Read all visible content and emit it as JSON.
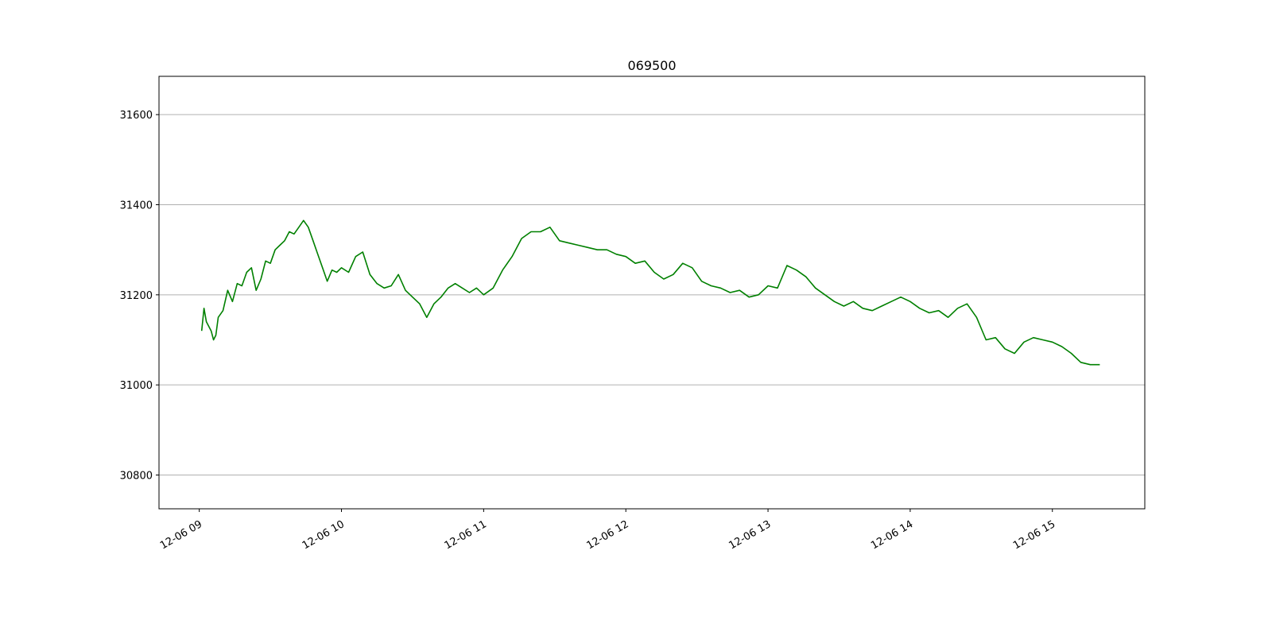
{
  "chart_data": {
    "type": "line",
    "title": "069500",
    "xlabel": "",
    "ylabel": "",
    "ylim": [
      30725,
      31685
    ],
    "xlim": [
      "12-06 08:43",
      "12-06 15:39"
    ],
    "grid": "horizontal",
    "legend": "none",
    "line_color": "#008000",
    "x_ticks": [
      "12-06 09",
      "12-06 10",
      "12-06 11",
      "12-06 12",
      "12-06 13",
      "12-06 14",
      "12-06 15"
    ],
    "y_ticks": [
      30800,
      31000,
      31200,
      31400,
      31600
    ],
    "series": [
      {
        "x": [
          "12-06 09:01",
          "12-06 09:02",
          "12-06 09:03",
          "12-06 09:04",
          "12-06 09:05",
          "12-06 09:06",
          "12-06 09:07",
          "12-06 09:08",
          "12-06 09:10",
          "12-06 09:12",
          "12-06 09:14",
          "12-06 09:16",
          "12-06 09:18",
          "12-06 09:20",
          "12-06 09:22",
          "12-06 09:24",
          "12-06 09:26",
          "12-06 09:28",
          "12-06 09:30",
          "12-06 09:32",
          "12-06 09:34",
          "12-06 09:36",
          "12-06 09:38",
          "12-06 09:40",
          "12-06 09:42",
          "12-06 09:44",
          "12-06 09:46",
          "12-06 09:48",
          "12-06 09:50",
          "12-06 09:52",
          "12-06 09:54",
          "12-06 09:56",
          "12-06 09:58",
          "12-06 10:00",
          "12-06 10:03",
          "12-06 10:06",
          "12-06 10:09",
          "12-06 10:12",
          "12-06 10:15",
          "12-06 10:18",
          "12-06 10:21",
          "12-06 10:24",
          "12-06 10:27",
          "12-06 10:30",
          "12-06 10:33",
          "12-06 10:36",
          "12-06 10:39",
          "12-06 10:42",
          "12-06 10:45",
          "12-06 10:48",
          "12-06 10:51",
          "12-06 10:54",
          "12-06 10:57",
          "12-06 11:00",
          "12-06 11:04",
          "12-06 11:08",
          "12-06 11:12",
          "12-06 11:16",
          "12-06 11:20",
          "12-06 11:24",
          "12-06 11:28",
          "12-06 11:32",
          "12-06 11:36",
          "12-06 11:40",
          "12-06 11:44",
          "12-06 11:48",
          "12-06 11:52",
          "12-06 11:56",
          "12-06 12:00",
          "12-06 12:04",
          "12-06 12:08",
          "12-06 12:12",
          "12-06 12:16",
          "12-06 12:20",
          "12-06 12:24",
          "12-06 12:28",
          "12-06 12:32",
          "12-06 12:36",
          "12-06 12:40",
          "12-06 12:44",
          "12-06 12:48",
          "12-06 12:52",
          "12-06 12:56",
          "12-06 13:00",
          "12-06 13:04",
          "12-06 13:08",
          "12-06 13:12",
          "12-06 13:16",
          "12-06 13:20",
          "12-06 13:24",
          "12-06 13:28",
          "12-06 13:32",
          "12-06 13:36",
          "12-06 13:40",
          "12-06 13:44",
          "12-06 13:48",
          "12-06 13:52",
          "12-06 13:56",
          "12-06 14:00",
          "12-06 14:04",
          "12-06 14:08",
          "12-06 14:12",
          "12-06 14:16",
          "12-06 14:20",
          "12-06 14:24",
          "12-06 14:28",
          "12-06 14:32",
          "12-06 14:36",
          "12-06 14:40",
          "12-06 14:44",
          "12-06 14:48",
          "12-06 14:52",
          "12-06 14:56",
          "12-06 15:00",
          "12-06 15:04",
          "12-06 15:08",
          "12-06 15:12",
          "12-06 15:16",
          "12-06 15:20"
        ],
        "y": [
          31120,
          31170,
          31140,
          31130,
          31120,
          31100,
          31110,
          31150,
          31165,
          31210,
          31185,
          31225,
          31220,
          31250,
          31260,
          31210,
          31235,
          31275,
          31270,
          31300,
          31310,
          31320,
          31340,
          31335,
          31350,
          31365,
          31350,
          31320,
          31290,
          31260,
          31230,
          31255,
          31250,
          31260,
          31250,
          31285,
          31295,
          31245,
          31225,
          31215,
          31220,
          31245,
          31210,
          31195,
          31180,
          31150,
          31180,
          31195,
          31215,
          31225,
          31215,
          31205,
          31215,
          31200,
          31215,
          31255,
          31285,
          31325,
          31340,
          31340,
          31350,
          31320,
          31315,
          31310,
          31305,
          31300,
          31300,
          31290,
          31285,
          31270,
          31275,
          31250,
          31235,
          31245,
          31270,
          31260,
          31230,
          31220,
          31215,
          31205,
          31210,
          31195,
          31200,
          31220,
          31215,
          31265,
          31255,
          31240,
          31215,
          31200,
          31185,
          31175,
          31185,
          31170,
          31165,
          31175,
          31185,
          31195,
          31185,
          31170,
          31160,
          31165,
          31150,
          31170,
          31180,
          31150,
          31100,
          31105,
          31080,
          31070,
          31095,
          31105,
          31100,
          31095,
          31085,
          31070,
          31050,
          31045,
          31045
        ]
      }
    ]
  }
}
